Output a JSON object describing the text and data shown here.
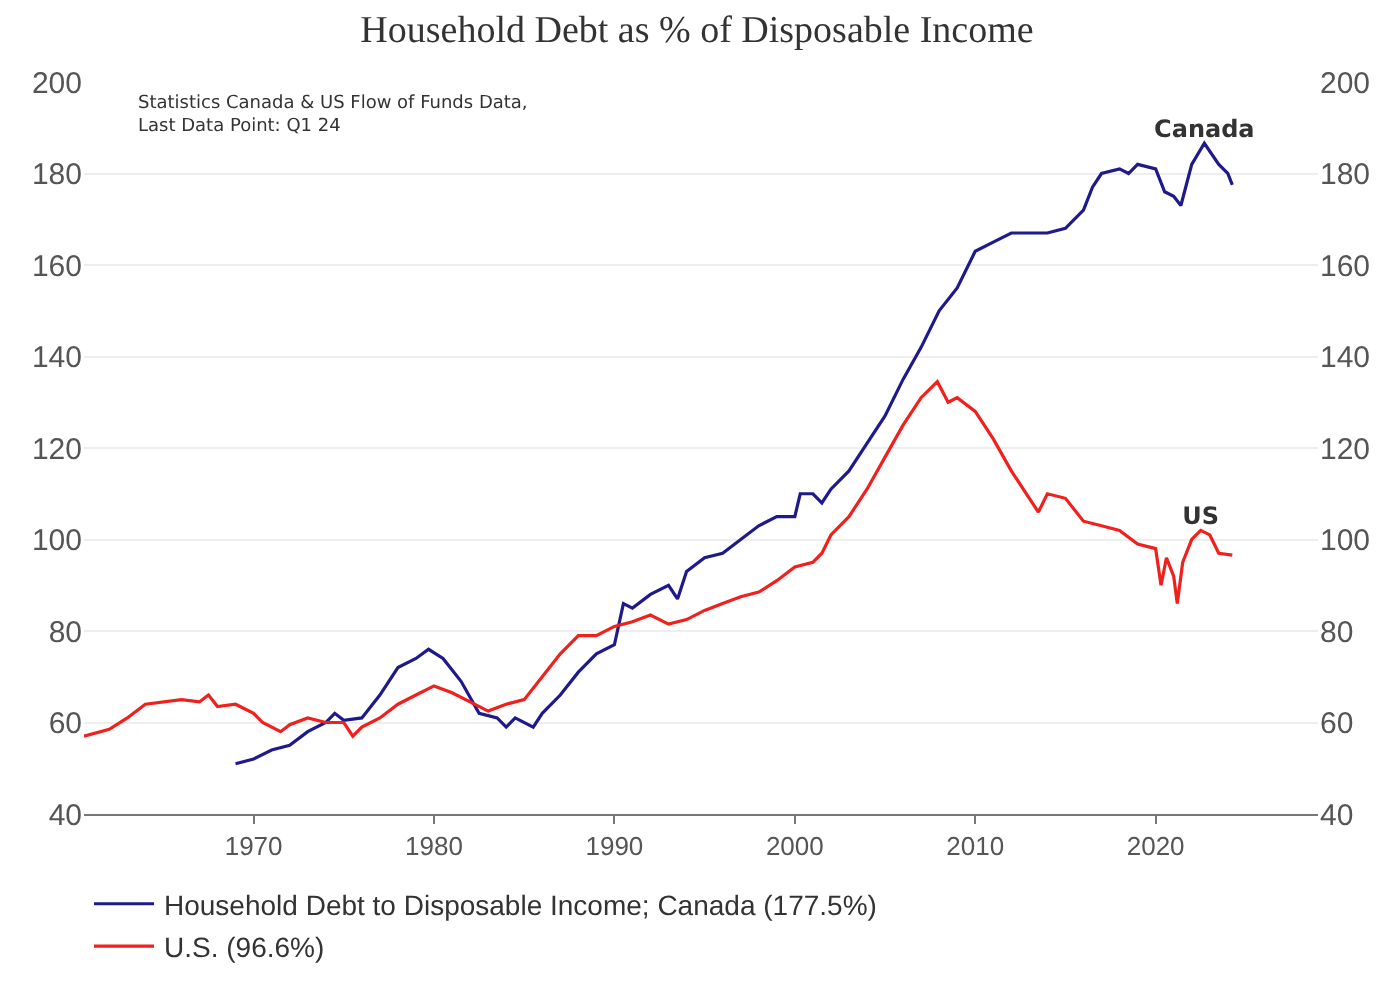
{
  "chart_data": {
    "type": "line",
    "title": "Household Debt as % of Disposable Income",
    "xlim": [
      1960.6,
      2029
    ],
    "xticks": [
      1970,
      1980,
      1990,
      2000,
      2010,
      2020
    ],
    "ylim": [
      40,
      200
    ],
    "yticks": [
      40,
      60,
      80,
      100,
      120,
      140,
      160,
      180,
      200
    ],
    "y2lim": [
      40,
      200
    ],
    "y2ticks": [
      40,
      60,
      80,
      100,
      120,
      140,
      160,
      180,
      200
    ],
    "grid": "y",
    "legend": "bottom left",
    "marker": "none",
    "line_style": "solid",
    "annotations": [
      "Statistics Canada & US Flow of Funds Data,\nLast Data Point: Q1 24",
      {
        "text": "Canada",
        "x": 2022.7,
        "y": 186.6
      },
      {
        "text": "US",
        "x": 2022.5,
        "y": 102
      }
    ],
    "series": [
      {
        "name": "Household Debt to Disposable Income; Canada (177.5%)",
        "color": "#1f1a8c",
        "x": [
          1969,
          1970,
          1971,
          1972,
          1973,
          1974,
          1974.5,
          1975,
          1976,
          1977,
          1978,
          1979,
          1979.7,
          1980.5,
          1981.5,
          1982.5,
          1983.5,
          1984,
          1984.5,
          1985.5,
          1986,
          1987,
          1988,
          1989,
          1990,
          1990.5,
          1991,
          1992,
          1993,
          1993.5,
          1994,
          1995,
          1996,
          1997,
          1998,
          1999,
          2000,
          2000.3,
          2001,
          2001.5,
          2002,
          2003,
          2004,
          2005,
          2006,
          2007,
          2008,
          2009,
          2010,
          2011,
          2012,
          2013,
          2014,
          2015,
          2016,
          2016.5,
          2017,
          2018,
          2018.5,
          2019,
          2020,
          2020.5,
          2021,
          2021.4,
          2022,
          2022.7,
          2023.5,
          2024,
          2024.25
        ],
        "values": [
          51,
          52,
          54,
          55,
          58,
          60,
          62,
          60.5,
          61,
          66,
          72,
          74,
          76,
          74,
          69,
          62,
          61,
          59,
          61,
          59,
          62,
          66,
          71,
          75,
          77,
          86,
          85,
          88,
          90,
          87,
          93,
          96,
          97,
          100,
          103,
          105,
          105,
          110,
          110,
          108,
          111,
          115,
          121,
          127,
          135,
          142,
          150,
          155,
          163,
          165,
          167,
          167,
          167,
          168,
          172,
          177,
          180,
          181,
          180,
          182,
          181,
          176,
          175,
          173,
          182,
          186.6,
          182,
          180,
          177.5
        ]
      },
      {
        "name": "U.S. (96.6%)",
        "color": "#f0201c",
        "x": [
          1960.6,
          1962,
          1963,
          1964,
          1966,
          1967,
          1967.5,
          1968,
          1969,
          1970,
          1970.5,
          1971.5,
          1972,
          1973,
          1974,
          1975,
          1975.5,
          1976,
          1977,
          1978,
          1979,
          1980,
          1981,
          1982,
          1983,
          1984,
          1985,
          1986,
          1987,
          1988,
          1989,
          1990,
          1991,
          1992,
          1993,
          1994,
          1995,
          1996,
          1997,
          1998,
          1999,
          2000,
          2001,
          2001.5,
          2002,
          2003,
          2004,
          2005,
          2006,
          2007,
          2007.9,
          2008.5,
          2009,
          2010,
          2011,
          2012,
          2013,
          2013.5,
          2014,
          2015,
          2016,
          2017,
          2018,
          2019,
          2020,
          2020.3,
          2020.6,
          2021,
          2021.2,
          2021.5,
          2022,
          2022.5,
          2023,
          2023.5,
          2024.25
        ],
        "values": [
          57,
          58.5,
          61,
          64,
          65,
          64.5,
          66,
          63.5,
          64,
          62,
          60,
          58,
          59.5,
          61,
          60,
          60,
          57,
          59,
          61,
          64,
          66,
          68,
          66.5,
          64.5,
          62.5,
          64,
          65,
          70,
          75,
          79,
          79,
          81,
          82,
          83.5,
          81.5,
          82.5,
          84.5,
          86,
          87.5,
          88.5,
          91,
          94,
          95,
          97,
          101,
          105,
          111,
          118,
          125,
          131,
          134.5,
          130,
          131,
          128,
          122,
          115,
          109,
          106,
          110,
          109,
          104,
          103,
          102,
          99,
          98,
          90,
          96,
          92,
          86,
          95,
          100,
          102,
          101,
          97,
          96.6
        ]
      }
    ]
  }
}
